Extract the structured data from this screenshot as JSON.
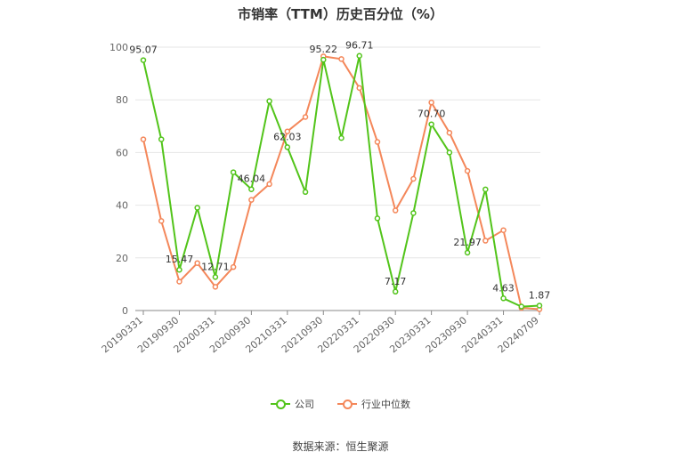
{
  "chart_data": {
    "type": "line",
    "title": "市销率（TTM）历史百分位（%）",
    "xlabel": "",
    "ylabel": "",
    "ylim": [
      0,
      100
    ],
    "yticks": [
      0,
      20,
      40,
      60,
      80,
      100
    ],
    "xtick_labels": [
      "20190331",
      "20190930",
      "20200331",
      "20200930",
      "20210331",
      "20210930",
      "20220331",
      "20220930",
      "20230331",
      "20230930",
      "20240331",
      "20240709"
    ],
    "categories": [
      "20190331",
      "20190630",
      "20190930",
      "20191231",
      "20200331",
      "20200630",
      "20200930",
      "20201231",
      "20210331",
      "20210630",
      "20210930",
      "20211231",
      "20220331",
      "20220630",
      "20220930",
      "20221231",
      "20230331",
      "20230630",
      "20230930",
      "20231231",
      "20240331",
      "20240630",
      "20240709"
    ],
    "series": [
      {
        "name": "公司",
        "color": "#52c41a",
        "values": [
          95.07,
          65.0,
          15.47,
          39.0,
          12.71,
          52.5,
          46.04,
          79.5,
          62.03,
          45.0,
          95.22,
          65.5,
          96.71,
          35.0,
          7.17,
          37.0,
          70.7,
          60.0,
          21.97,
          46.0,
          4.63,
          1.5,
          1.87
        ]
      },
      {
        "name": "行业中位数",
        "color": "#f4875a",
        "values": [
          65.0,
          34.0,
          11.0,
          18.0,
          9.0,
          16.5,
          42.0,
          48.0,
          68.0,
          73.5,
          96.5,
          95.5,
          84.5,
          64.0,
          38.0,
          50.0,
          79.0,
          67.5,
          53.0,
          26.5,
          30.5,
          1.0,
          0.5
        ]
      }
    ],
    "data_labels": [
      {
        "series": 0,
        "index": 0,
        "text": "95.07"
      },
      {
        "series": 0,
        "index": 2,
        "text": "15.47"
      },
      {
        "series": 0,
        "index": 4,
        "text": "12.71"
      },
      {
        "series": 0,
        "index": 6,
        "text": "46.04"
      },
      {
        "series": 0,
        "index": 8,
        "text": "62.03"
      },
      {
        "series": 0,
        "index": 10,
        "text": "95.22"
      },
      {
        "series": 0,
        "index": 12,
        "text": "96.71"
      },
      {
        "series": 0,
        "index": 14,
        "text": "7.17"
      },
      {
        "series": 0,
        "index": 16,
        "text": "70.70"
      },
      {
        "series": 0,
        "index": 18,
        "text": "21.97"
      },
      {
        "series": 0,
        "index": 20,
        "text": "4.63"
      },
      {
        "series": 0,
        "index": 22,
        "text": "1.87"
      }
    ],
    "grid": true,
    "legend_position": "bottom"
  },
  "legend": {
    "company_label": "公司",
    "industry_label": "行业中位数"
  },
  "source_note": "数据来源：恒生聚源"
}
